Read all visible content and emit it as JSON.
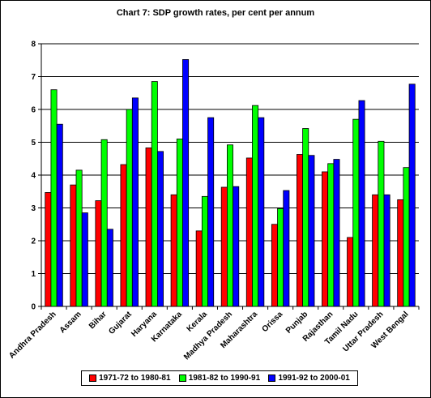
{
  "chart_data": {
    "type": "bar",
    "title": "Chart 7: SDP growth rates, per cent per annum",
    "xlabel": "",
    "ylabel": "",
    "ylim": [
      0,
      8
    ],
    "yticks": [
      "0",
      "1",
      "2",
      "3",
      "4",
      "5",
      "6",
      "7",
      "8"
    ],
    "grid": true,
    "legend_position": "bottom",
    "categories": [
      "Andhra Pradesh",
      "Assam",
      "Bihar",
      "Gujarat",
      "Haryana",
      "Karnataka",
      "Kerala",
      "Madhya Pradesh",
      "Maharashtra",
      "Orissa",
      "Punjab",
      "Rajasthan",
      "Tamil Nadu",
      "Uttar Pradesh",
      "West Bengal"
    ],
    "series": [
      {
        "name": "1971-72  to  1980-81",
        "color": "#ff0000",
        "values": [
          3.47,
          3.7,
          3.22,
          4.32,
          4.83,
          3.4,
          2.3,
          3.63,
          4.52,
          2.5,
          4.63,
          4.1,
          2.1,
          3.4,
          3.25
        ]
      },
      {
        "name": "1981-82  to  1990-91",
        "color": "#00ff00",
        "values": [
          6.6,
          4.15,
          5.08,
          6.0,
          6.85,
          5.1,
          3.35,
          4.92,
          6.12,
          2.98,
          5.42,
          4.35,
          5.7,
          5.03,
          4.23
        ]
      },
      {
        "name": "1991-92  to  2000-01",
        "color": "#0000ff",
        "values": [
          5.55,
          2.85,
          2.35,
          6.35,
          4.72,
          7.52,
          5.75,
          3.65,
          5.75,
          3.53,
          4.6,
          4.48,
          6.27,
          3.4,
          6.77
        ]
      }
    ]
  }
}
